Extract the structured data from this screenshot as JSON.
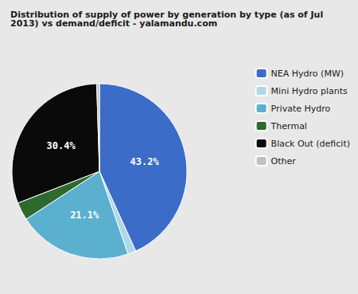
{
  "chart_data": {
    "type": "pie",
    "title": "Distribution of supply of power by generation by type (as of Jul\n2013) vs demand/deficit - yalamandu.com",
    "categories": [
      "NEA Hydro (MW)",
      "Mini Hydro plants",
      "Private Hydro",
      "Thermal",
      "Black Out (deficit)",
      "Other"
    ],
    "values": [
      43.2,
      1.5,
      21.1,
      3.3,
      30.4,
      0.5
    ],
    "value_labels": [
      "43.2%",
      null,
      "21.1%",
      null,
      "30.4%",
      null
    ],
    "data_labels": true,
    "colors": [
      "#3B6CC7",
      "#ADD8E6",
      "#5BB0D0",
      "#2D6A2D",
      "#0A0A0A",
      "#C0C0C0"
    ],
    "legend": "upper right"
  }
}
